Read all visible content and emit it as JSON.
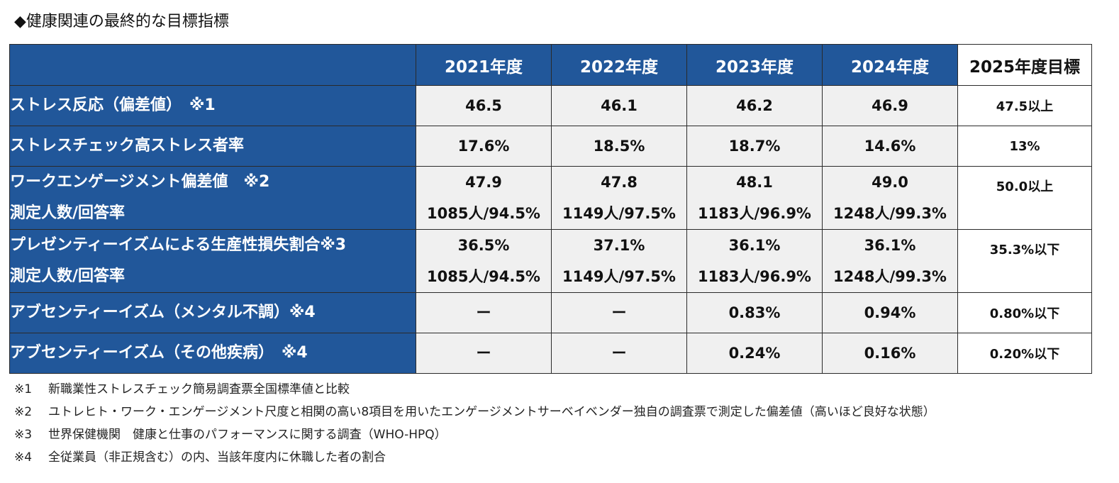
{
  "title": "◆健康関連の最終的な目標指標",
  "table": {
    "headers": [
      "2021年度",
      "2022年度",
      "2023年度",
      "2024年度",
      "2025年度目標"
    ],
    "rows": [
      {
        "label": [
          "ストレス反応（偏差値）　※1"
        ],
        "values": [
          [
            "46.5"
          ],
          [
            "46.1"
          ],
          [
            "46.2"
          ],
          [
            "46.9"
          ]
        ],
        "target": "47.5以上"
      },
      {
        "label": [
          "ストレスチェック高ストレス者率"
        ],
        "values": [
          [
            "17.6%"
          ],
          [
            "18.5%"
          ],
          [
            "18.7%"
          ],
          [
            "14.6%"
          ]
        ],
        "target": "13%"
      },
      {
        "label": [
          "ワークエンゲージメント偏差値　※2",
          "測定人数/回答率"
        ],
        "values": [
          [
            "47.9",
            "1085人/94.5%"
          ],
          [
            "47.8",
            "1149人/97.5%"
          ],
          [
            "48.1",
            "1183人/96.9%"
          ],
          [
            "49.0",
            "1248人/99.3%"
          ]
        ],
        "target": "50.0以上"
      },
      {
        "label": [
          "プレゼンティーイズムによる生産性損失割合※3",
          "測定人数/回答率"
        ],
        "values": [
          [
            "36.5%",
            "1085人/94.5%"
          ],
          [
            "37.1%",
            "1149人/97.5%"
          ],
          [
            "36.1%",
            "1183人/96.9%"
          ],
          [
            "36.1%",
            "1248人/99.3%"
          ]
        ],
        "target": "35.3%以下"
      },
      {
        "label": [
          "アブセンティーイズム（メンタル不調）※4"
        ],
        "values": [
          [
            "ー"
          ],
          [
            "ー"
          ],
          [
            "0.83%"
          ],
          [
            "0.94%"
          ]
        ],
        "target": "0.80%以下"
      },
      {
        "label": [
          "アブセンティーイズム（その他疾病）　※4"
        ],
        "values": [
          [
            "ー"
          ],
          [
            "ー"
          ],
          [
            "0.24%"
          ],
          [
            "0.16%"
          ]
        ],
        "target": "0.20%以下"
      }
    ]
  },
  "footnotes": [
    {
      "mark": "※1",
      "text": "新職業性ストレスチェック簡易調査票全国標準値と比較"
    },
    {
      "mark": "※2",
      "text": "ユトレヒト・ワーク・エンゲージメント尺度と相関の高い8項目を用いたエンゲージメントサーベイベンダー独自の調査票で測定した偏差値（高いほど良好な状態）"
    },
    {
      "mark": "※3",
      "text": "世界保健機関　健康と仕事のパフォーマンスに関する調査（WHO-HPQ）"
    },
    {
      "mark": "※4",
      "text": "全従業員（非正規含む）の内、当該年度内に休職した者の割合"
    }
  ]
}
